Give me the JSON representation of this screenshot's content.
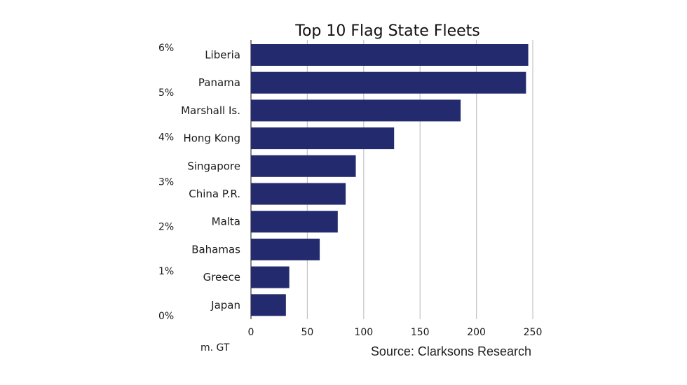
{
  "chart_data": {
    "type": "bar",
    "orientation": "horizontal",
    "title": "Top 10 Flag State Fleets",
    "categories": [
      "Liberia",
      "Panama",
      "Marshall Is.",
      "Hong Kong",
      "Singapore",
      "China P.R.",
      "Malta",
      "Bahamas",
      "Greece",
      "Japan"
    ],
    "values": [
      246,
      244,
      186,
      127,
      93,
      84,
      77,
      61,
      34,
      31
    ],
    "xlim": [
      0,
      250
    ],
    "x_ticks": [
      0,
      50,
      100,
      150,
      200,
      250
    ],
    "x_tick_labels": [
      "0",
      "50",
      "100",
      "150",
      "200",
      "250"
    ],
    "xlabel": "m. GT",
    "left_tick_labels": [
      "6%",
      "5%",
      "4%",
      "3%",
      "2%",
      "1%",
      "0%"
    ],
    "grid": "vertical",
    "bar_color": "#232b6e",
    "grid_color": "#c4c4c4",
    "source": "Source: Clarksons Research"
  }
}
